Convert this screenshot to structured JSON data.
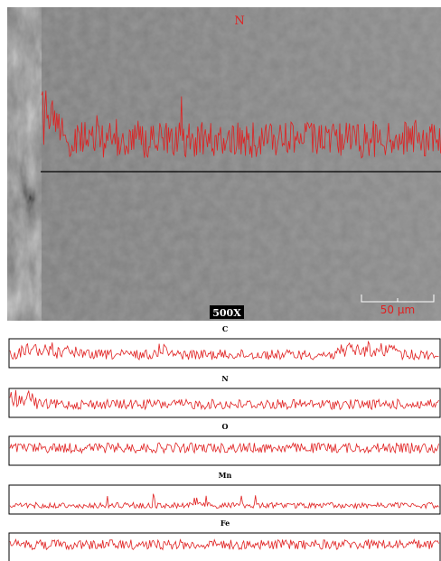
{
  "image": {
    "element_label": "N",
    "magnification": "500X",
    "scale_bar": "50 μm"
  },
  "profiles": [
    {
      "label": "C"
    },
    {
      "label": "N"
    },
    {
      "label": "O"
    },
    {
      "label": "Mn"
    },
    {
      "label": "Fe"
    }
  ]
}
